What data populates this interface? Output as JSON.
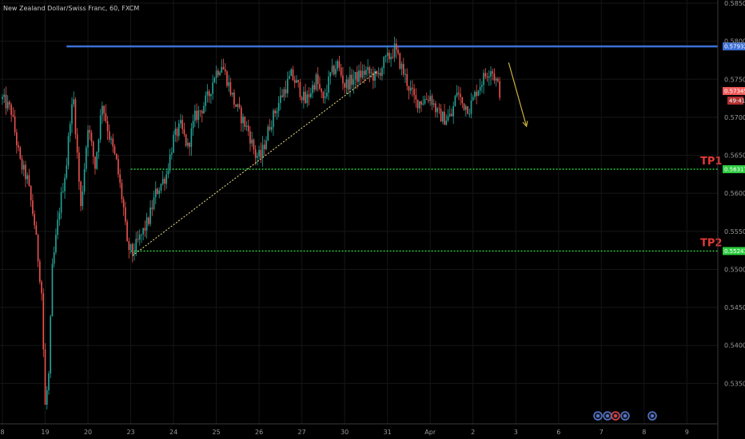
{
  "chart_data": {
    "type": "candlestick",
    "title": "New Zealand Dollar/Swiss Franc, 60, FXCM",
    "ylim": [
      0.53,
      0.585
    ],
    "y_ticks": [
      0.535,
      0.54,
      0.545,
      0.55,
      0.555,
      0.56,
      0.565,
      0.57,
      0.575,
      0.58,
      0.585
    ],
    "y_tick_labels": [
      "0.53500",
      "0.54000",
      "0.54500",
      "0.55000",
      "0.55500",
      "0.56000",
      "0.56500",
      "0.57000",
      "0.57500",
      "0.58000",
      "0.58500"
    ],
    "x_ticks": [
      {
        "label": "8",
        "i": 0
      },
      {
        "label": "19",
        "i": 24
      },
      {
        "label": "20",
        "i": 48
      },
      {
        "label": "23",
        "i": 72
      },
      {
        "label": "24",
        "i": 96
      },
      {
        "label": "25",
        "i": 120
      },
      {
        "label": "26",
        "i": 144
      },
      {
        "label": "27",
        "i": 168
      },
      {
        "label": "30",
        "i": 192
      },
      {
        "label": "31",
        "i": 216
      },
      {
        "label": "Apr",
        "i": 240
      },
      {
        "label": "2",
        "i": 264
      },
      {
        "label": "3",
        "i": 288
      },
      {
        "label": "6",
        "i": 312
      },
      {
        "label": "7",
        "i": 336
      },
      {
        "label": "8",
        "i": 360
      },
      {
        "label": "9",
        "i": 384
      }
    ],
    "anchors": [
      [
        0,
        0.5724
      ],
      [
        5,
        0.5708
      ],
      [
        10,
        0.564
      ],
      [
        14,
        0.5618
      ],
      [
        18,
        0.556
      ],
      [
        22,
        0.547
      ],
      [
        24,
        0.532
      ],
      [
        26,
        0.536
      ],
      [
        28,
        0.55
      ],
      [
        32,
        0.558
      ],
      [
        36,
        0.564
      ],
      [
        38,
        0.57
      ],
      [
        40,
        0.5722
      ],
      [
        44,
        0.558
      ],
      [
        48,
        0.569
      ],
      [
        52,
        0.5635
      ],
      [
        56,
        0.572
      ],
      [
        60,
        0.5675
      ],
      [
        64,
        0.564
      ],
      [
        68,
        0.558
      ],
      [
        70,
        0.553
      ],
      [
        73,
        0.5522
      ],
      [
        78,
        0.5545
      ],
      [
        82,
        0.5565
      ],
      [
        86,
        0.56
      ],
      [
        92,
        0.5625
      ],
      [
        96,
        0.5672
      ],
      [
        100,
        0.5688
      ],
      [
        104,
        0.566
      ],
      [
        108,
        0.57
      ],
      [
        112,
        0.5712
      ],
      [
        116,
        0.573
      ],
      [
        119,
        0.5756
      ],
      [
        123,
        0.577
      ],
      [
        126,
        0.575
      ],
      [
        130,
        0.572
      ],
      [
        134,
        0.57
      ],
      [
        138,
        0.5682
      ],
      [
        142,
        0.565
      ],
      [
        145,
        0.5648
      ],
      [
        150,
        0.569
      ],
      [
        156,
        0.5725
      ],
      [
        162,
        0.5755
      ],
      [
        166,
        0.574
      ],
      [
        170,
        0.572
      ],
      [
        176,
        0.575
      ],
      [
        180,
        0.572
      ],
      [
        184,
        0.5755
      ],
      [
        188,
        0.577
      ],
      [
        192,
        0.5742
      ],
      [
        198,
        0.5752
      ],
      [
        204,
        0.576
      ],
      [
        210,
        0.5752
      ],
      [
        214,
        0.5772
      ],
      [
        218,
        0.5782
      ],
      [
        220,
        0.579
      ],
      [
        224,
        0.5765
      ],
      [
        228,
        0.574
      ],
      [
        232,
        0.572
      ],
      [
        236,
        0.5722
      ],
      [
        240,
        0.5728
      ],
      [
        244,
        0.5705
      ],
      [
        248,
        0.5698
      ],
      [
        252,
        0.5702
      ],
      [
        255,
        0.5735
      ],
      [
        258,
        0.5718
      ],
      [
        262,
        0.5712
      ],
      [
        266,
        0.5735
      ],
      [
        270,
        0.5752
      ],
      [
        274,
        0.5765
      ],
      [
        277,
        0.5748
      ],
      [
        279,
        0.5734
      ]
    ],
    "levels": [
      {
        "name": "resistance",
        "price": 0.57932,
        "label": "0.57932",
        "color": "#3b6fd4",
        "style": "solid",
        "start_i": 36
      },
      {
        "name": "tp1",
        "price": 0.56317,
        "label": "0.56317",
        "text": "TP1",
        "color": "#2ecc40",
        "style": "dotted",
        "start_i": 72
      },
      {
        "name": "tp2",
        "price": 0.55241,
        "label": "0.55241",
        "text": "TP2",
        "color": "#2ecc40",
        "style": "dotted",
        "start_i": 72
      }
    ],
    "current_price": {
      "value": 0.57345,
      "label": "0.57345",
      "countdown": "49:41",
      "color": "#f05a5a"
    },
    "trendline": {
      "from": [
        73,
        0.5518
      ],
      "to": [
        210,
        0.576
      ],
      "color": "#f0e68c",
      "style": "dotted"
    },
    "arrow": {
      "from": [
        284,
        0.5772
      ],
      "to": [
        294,
        0.5688
      ],
      "color": "#c8b040"
    },
    "up_color": "#26a69a",
    "down_color": "#ef5350"
  }
}
